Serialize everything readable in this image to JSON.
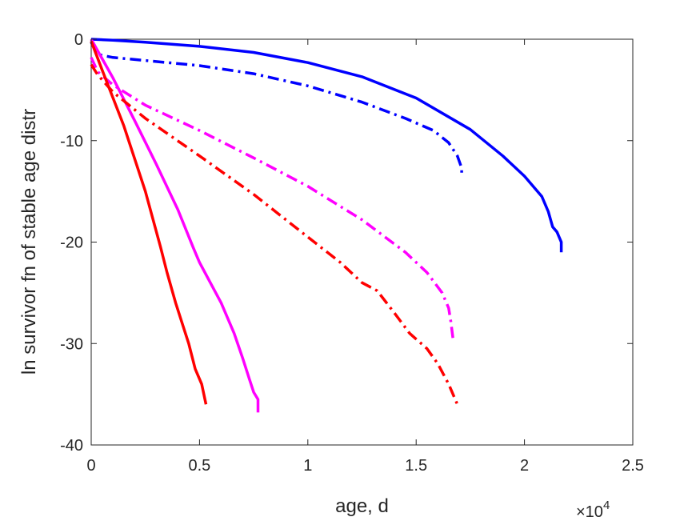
{
  "chart_data": {
    "type": "line",
    "xlabel": "age, d",
    "ylabel": "ln survivor fn of stable age distr",
    "x_multiplier_label": "×10",
    "x_multiplier_exponent": "4",
    "xlim": [
      0,
      25000
    ],
    "ylim": [
      -40,
      0
    ],
    "xticks": [
      0,
      5000,
      10000,
      15000,
      20000,
      25000
    ],
    "xtick_labels": [
      "0",
      "0.5",
      "1",
      "1.5",
      "2",
      "2.5"
    ],
    "yticks": [
      0,
      -10,
      -20,
      -30,
      -40
    ],
    "ytick_labels": [
      "0",
      "-10",
      "-20",
      "-30",
      "-40"
    ],
    "grid": false,
    "series": [
      {
        "color": "#0000ff",
        "style": "solid",
        "points": [
          [
            0,
            0
          ],
          [
            1000,
            -0.1
          ],
          [
            2500,
            -0.3
          ],
          [
            5000,
            -0.7
          ],
          [
            7500,
            -1.3
          ],
          [
            10000,
            -2.3
          ],
          [
            12500,
            -3.7
          ],
          [
            15000,
            -5.8
          ],
          [
            17500,
            -8.9
          ],
          [
            19000,
            -11.5
          ],
          [
            20000,
            -13.5
          ],
          [
            20800,
            -15.5
          ],
          [
            21100,
            -17.0
          ],
          [
            21300,
            -18.5
          ],
          [
            21500,
            -19.0
          ],
          [
            21600,
            -19.5
          ],
          [
            21700,
            -20.0
          ],
          [
            21700,
            -21.0
          ]
        ]
      },
      {
        "color": "#0000ff",
        "style": "dashdot",
        "points": [
          [
            0,
            -0.3
          ],
          [
            300,
            -1.5
          ],
          [
            1000,
            -1.8
          ],
          [
            2500,
            -2.1
          ],
          [
            5000,
            -2.6
          ],
          [
            7500,
            -3.4
          ],
          [
            10000,
            -4.6
          ],
          [
            12500,
            -6.2
          ],
          [
            14500,
            -7.8
          ],
          [
            15800,
            -9.0
          ],
          [
            16500,
            -10.2
          ],
          [
            16900,
            -11.5
          ],
          [
            17100,
            -12.7
          ],
          [
            17100,
            -13.3
          ]
        ]
      },
      {
        "color": "#ff00ff",
        "style": "solid",
        "points": [
          [
            0,
            0
          ],
          [
            1000,
            -3.8
          ],
          [
            2000,
            -8.0
          ],
          [
            3000,
            -12.3
          ],
          [
            4000,
            -16.8
          ],
          [
            4700,
            -20.5
          ],
          [
            5000,
            -22.0
          ],
          [
            5500,
            -24.0
          ],
          [
            6000,
            -26.0
          ],
          [
            6600,
            -29.0
          ],
          [
            7000,
            -31.5
          ],
          [
            7300,
            -33.5
          ],
          [
            7500,
            -34.8
          ],
          [
            7700,
            -35.5
          ],
          [
            7700,
            -36.8
          ]
        ]
      },
      {
        "color": "#ff00ff",
        "style": "dashdot",
        "points": [
          [
            0,
            -1.8
          ],
          [
            300,
            -3.2
          ],
          [
            1000,
            -4.5
          ],
          [
            2500,
            -6.5
          ],
          [
            5000,
            -9.0
          ],
          [
            7500,
            -11.7
          ],
          [
            10000,
            -14.5
          ],
          [
            12500,
            -17.8
          ],
          [
            14500,
            -21.0
          ],
          [
            15500,
            -23.0
          ],
          [
            16200,
            -25.0
          ],
          [
            16500,
            -26.5
          ],
          [
            16600,
            -27.8
          ],
          [
            16700,
            -29.5
          ]
        ]
      },
      {
        "color": "#ff0000",
        "style": "solid",
        "points": [
          [
            0,
            -0.2
          ],
          [
            500,
            -3.0
          ],
          [
            1500,
            -8.5
          ],
          [
            2500,
            -15.0
          ],
          [
            3200,
            -20.5
          ],
          [
            3500,
            -23.0
          ],
          [
            3900,
            -26.0
          ],
          [
            4200,
            -28.0
          ],
          [
            4500,
            -30.0
          ],
          [
            4800,
            -32.5
          ],
          [
            5100,
            -34.0
          ],
          [
            5300,
            -36.0
          ]
        ]
      },
      {
        "color": "#ff0000",
        "style": "dashdot",
        "points": [
          [
            0,
            -2.5
          ],
          [
            300,
            -3.5
          ],
          [
            1000,
            -5.2
          ],
          [
            2500,
            -7.8
          ],
          [
            5000,
            -11.5
          ],
          [
            7500,
            -15.3
          ],
          [
            10000,
            -19.5
          ],
          [
            11500,
            -22.0
          ],
          [
            12500,
            -24.0
          ],
          [
            13200,
            -24.8
          ],
          [
            14000,
            -27.0
          ],
          [
            14700,
            -29.0
          ],
          [
            15500,
            -30.5
          ],
          [
            16000,
            -32.0
          ],
          [
            16500,
            -34.0
          ],
          [
            16900,
            -36.0
          ]
        ]
      }
    ]
  }
}
